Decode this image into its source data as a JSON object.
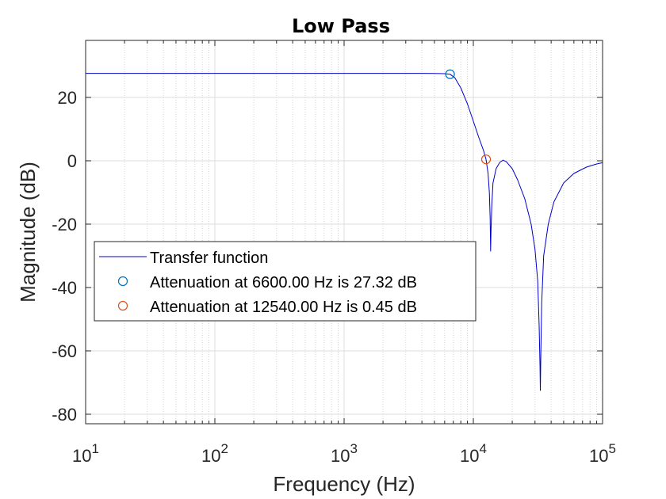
{
  "chart_data": {
    "type": "line",
    "title": "Low Pass",
    "xlabel": "Frequency (Hz)",
    "ylabel": "Magnitude (dB)",
    "xscale": "log",
    "xlim": [
      10,
      100000
    ],
    "ylim": [
      -83,
      38
    ],
    "grid": true,
    "minor_grid_x": true,
    "x_ticks": [
      {
        "value": 10,
        "base": "10",
        "exp": "1"
      },
      {
        "value": 100,
        "base": "10",
        "exp": "2"
      },
      {
        "value": 1000,
        "base": "10",
        "exp": "3"
      },
      {
        "value": 10000,
        "base": "10",
        "exp": "4"
      },
      {
        "value": 100000,
        "base": "10",
        "exp": "5"
      }
    ],
    "y_ticks": [
      {
        "value": 20,
        "label": "20"
      },
      {
        "value": 0,
        "label": "0"
      },
      {
        "value": -20,
        "label": "-20"
      },
      {
        "value": -40,
        "label": "-40"
      },
      {
        "value": -60,
        "label": "-60"
      },
      {
        "value": -80,
        "label": "-80"
      }
    ],
    "series": [
      {
        "name": "Transfer function",
        "color": "#0000cc",
        "x": [
          10,
          100,
          1000,
          3000,
          4000,
          5000,
          6000,
          6600,
          7200,
          8000,
          9000,
          10000,
          11000,
          12000,
          12540,
          13000,
          13300,
          13500,
          13600,
          13700,
          13900,
          14200,
          15000,
          16000,
          17000,
          18000,
          20000,
          22000,
          25000,
          28000,
          30000,
          31500,
          32300,
          32800,
          33000,
          33300,
          33800,
          35000,
          38000,
          42000,
          50000,
          60000,
          75000,
          90000,
          100000
        ],
        "y": [
          27.6,
          27.6,
          27.6,
          27.6,
          27.6,
          27.55,
          27.5,
          27.32,
          26.2,
          23,
          18,
          12.5,
          7.5,
          3.2,
          0.45,
          -4,
          -10,
          -18,
          -28.5,
          -22,
          -14,
          -7,
          -2.5,
          -0.5,
          0.2,
          -0.3,
          -2.5,
          -6,
          -12,
          -20,
          -28,
          -38,
          -52,
          -65,
          -72.5,
          -60,
          -45,
          -30,
          -20,
          -13,
          -7,
          -4,
          -2,
          -1,
          -0.6
        ]
      },
      {
        "name": "Attenuation at 6600.00 Hz is 27.32 dB",
        "color": "#0072bd",
        "marker": "o",
        "x": [
          6600
        ],
        "y": [
          27.32
        ]
      },
      {
        "name": "Attenuation at 12540.00 Hz is 0.45 dB",
        "color": "#d95319",
        "marker": "o",
        "x": [
          12540
        ],
        "y": [
          0.45
        ]
      }
    ],
    "legend": {
      "placement": "lower-left",
      "entries": [
        "Transfer function",
        "Attenuation at 6600.00 Hz is 27.32 dB",
        "Attenuation at 12540.00 Hz is 0.45 dB"
      ]
    }
  }
}
